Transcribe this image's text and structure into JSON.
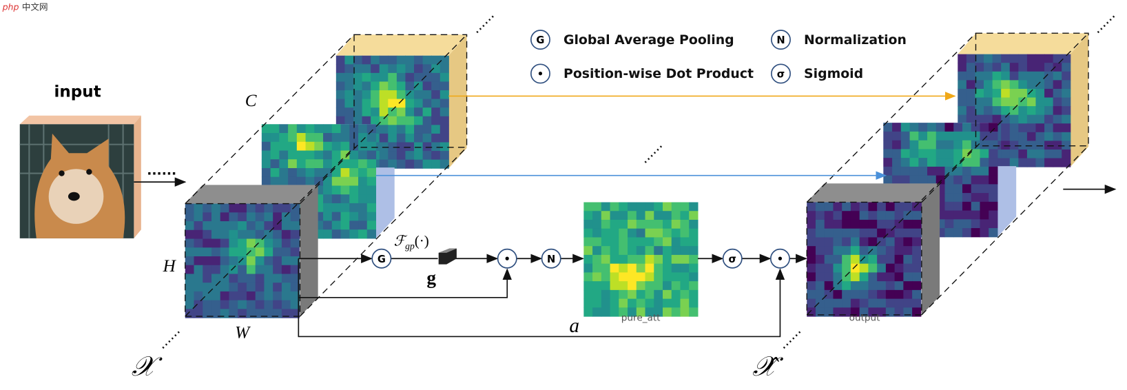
{
  "watermark": {
    "logo": "php",
    "text": "中文网"
  },
  "input_label": "input",
  "dims": {
    "channels": "C",
    "height": "H",
    "width": "W"
  },
  "tensors": {
    "input": "𝒳",
    "output": "𝒳̂"
  },
  "operators": {
    "gap_function": "ℱ",
    "gap_subscript": "gp",
    "gap_argument": "(·)",
    "gap_vector": "g",
    "attention": "a"
  },
  "nodes": [
    "G",
    "•",
    "N",
    "σ",
    "•"
  ],
  "legend": [
    {
      "symbol": "G",
      "label": "Global Average Pooling"
    },
    {
      "symbol": "•",
      "label": "Position-wise Dot Product"
    },
    {
      "symbol": "N",
      "label": "Normalization"
    },
    {
      "symbol": "σ",
      "label": "Sigmoid"
    }
  ],
  "map_captions": [
    "pure_att",
    "output"
  ]
}
